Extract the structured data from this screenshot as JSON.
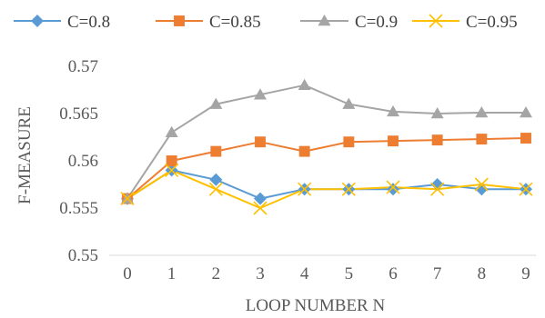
{
  "chart_data": {
    "type": "line",
    "title": "",
    "xlabel": "LOOP NUMBER N",
    "ylabel": "F-MEASURE",
    "x": [
      0,
      1,
      2,
      3,
      4,
      5,
      6,
      7,
      8,
      9
    ],
    "x_tick_labels": [
      "0",
      "1",
      "2",
      "3",
      "4",
      "5",
      "6",
      "7",
      "8",
      "9"
    ],
    "ylim": [
      0.55,
      0.57
    ],
    "y_ticks": [
      0.55,
      0.555,
      0.56,
      0.565,
      0.57
    ],
    "y_tick_labels": [
      "0.55",
      "0.555",
      "0.56",
      "0.565",
      "0.57"
    ],
    "grid": false,
    "legend_position": "top",
    "series": [
      {
        "name": "C=0.8",
        "color": "#5B9BD5",
        "marker": "diamond",
        "values": [
          0.556,
          0.559,
          0.558,
          0.556,
          0.557,
          0.557,
          0.557,
          0.5575,
          0.557,
          0.557
        ]
      },
      {
        "name": "C=0.85",
        "color": "#ED7D31",
        "marker": "square",
        "values": [
          0.556,
          0.56,
          0.561,
          0.562,
          0.561,
          0.562,
          0.5621,
          0.5622,
          0.5623,
          0.5624
        ]
      },
      {
        "name": "C=0.9",
        "color": "#A5A5A5",
        "marker": "triangle",
        "values": [
          0.556,
          0.563,
          0.566,
          0.567,
          0.568,
          0.566,
          0.5652,
          0.565,
          0.5651,
          0.5651
        ]
      },
      {
        "name": "C=0.95",
        "color": "#FFC000",
        "marker": "x",
        "values": [
          0.556,
          0.559,
          0.557,
          0.555,
          0.557,
          0.557,
          0.5572,
          0.557,
          0.5575,
          0.557
        ]
      }
    ]
  }
}
